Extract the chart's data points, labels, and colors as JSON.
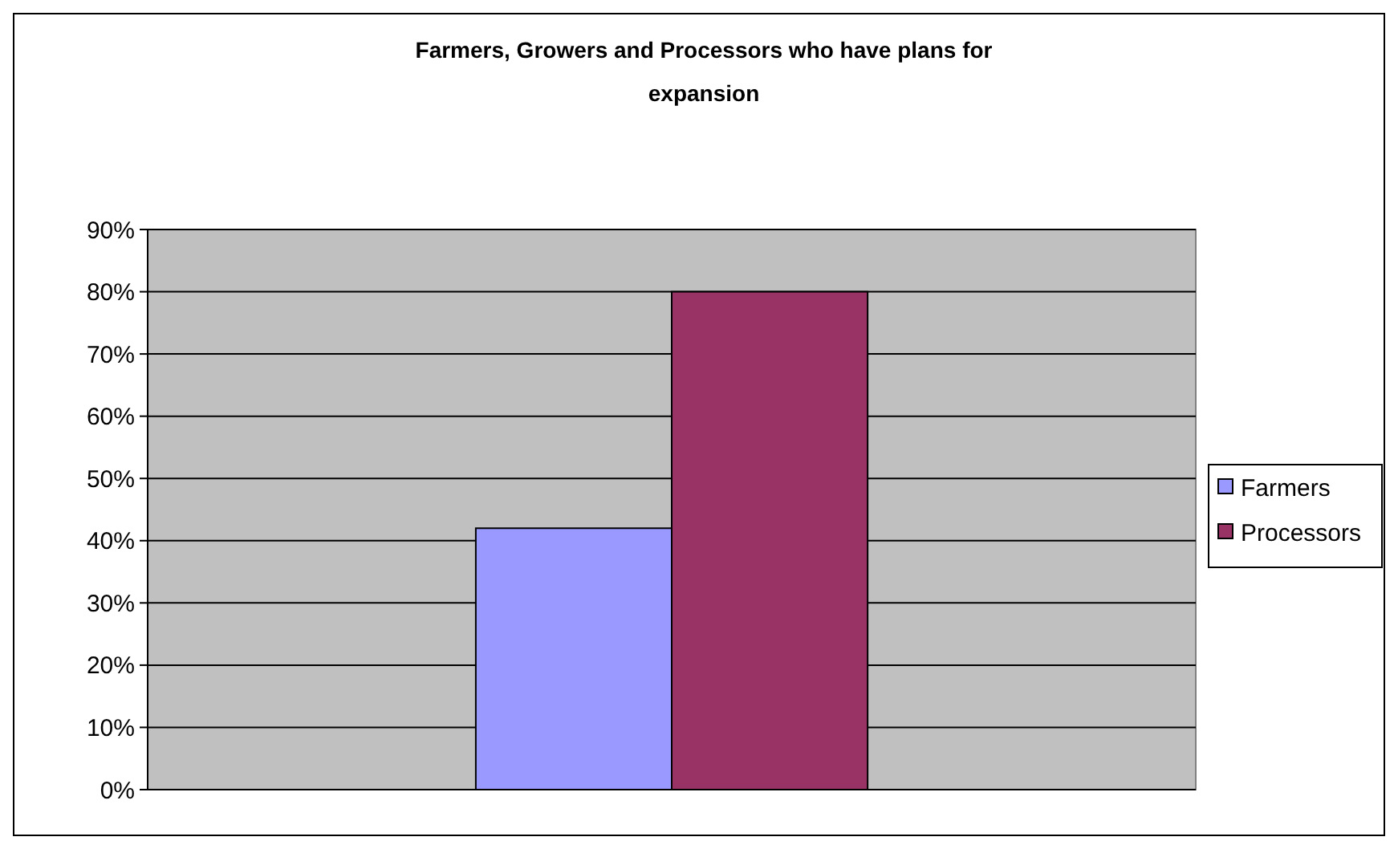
{
  "chart_data": {
    "type": "bar",
    "title": "Farmers, Growers and Processors who have plans for expansion",
    "categories": [
      null
    ],
    "series": [
      {
        "name": "Farmers",
        "color": "#9999ff",
        "values": [
          42
        ]
      },
      {
        "name": "Processors",
        "color": "#993366",
        "values": [
          80
        ]
      }
    ],
    "ylim": [
      0,
      90
    ],
    "yticks": [
      {
        "value": 0,
        "label": "0%"
      },
      {
        "value": 10,
        "label": "10%"
      },
      {
        "value": 20,
        "label": "20%"
      },
      {
        "value": 30,
        "label": "30%"
      },
      {
        "value": 40,
        "label": "40%"
      },
      {
        "value": 50,
        "label": "50%"
      },
      {
        "value": 60,
        "label": "60%"
      },
      {
        "value": 70,
        "label": "70%"
      },
      {
        "value": 80,
        "label": "80%"
      },
      {
        "value": 90,
        "label": "90%"
      }
    ],
    "grid": "y",
    "legend": "right"
  }
}
